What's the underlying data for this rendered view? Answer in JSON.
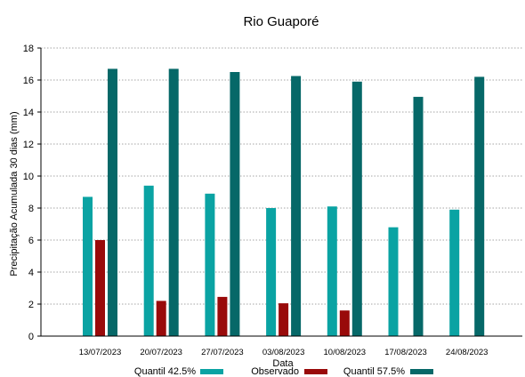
{
  "chart_data": {
    "type": "bar",
    "title": "Rio Guaporé",
    "xlabel": "Data",
    "ylabel": "Precipitação Acumulada 30 dias (mm)",
    "ylim": [
      0,
      18
    ],
    "yticks": [
      0,
      2,
      4,
      6,
      8,
      10,
      12,
      14,
      16,
      18
    ],
    "grid": "horizontal dotted",
    "legend_position": "bottom",
    "categories": [
      "13/07/2023",
      "20/07/2023",
      "27/07/2023",
      "03/08/2023",
      "10/08/2023",
      "17/08/2023",
      "24/08/2023"
    ],
    "series": [
      {
        "name": "Quantil 42.5%",
        "color": "#0aa3a3",
        "values": [
          8.7,
          9.4,
          8.9,
          8.0,
          8.1,
          6.8,
          7.9
        ]
      },
      {
        "name": "Observado",
        "color": "#990a0a",
        "values": [
          6.0,
          2.2,
          2.45,
          2.05,
          1.6,
          null,
          null
        ]
      },
      {
        "name": "Quantil 57.5%",
        "color": "#066868",
        "values": [
          16.7,
          16.7,
          16.5,
          16.25,
          15.9,
          14.95,
          16.2
        ]
      }
    ]
  }
}
